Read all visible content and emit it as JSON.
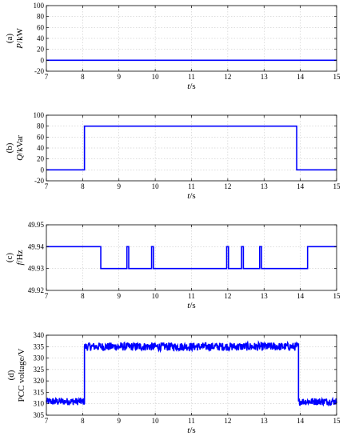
{
  "chart_data": [
    {
      "type": "line",
      "panel_label": "(a)",
      "ylabel_var": "P",
      "ylabel_unit": "/kW",
      "xlabel_var": "t",
      "xlabel_unit": "/s",
      "xlim": [
        7,
        15
      ],
      "ylim": [
        -20,
        100
      ],
      "xticks": [
        "7",
        "8",
        "9",
        "10",
        "11",
        "12",
        "13",
        "14",
        "15"
      ],
      "yticks": [
        "-20",
        "0",
        "20",
        "40",
        "60",
        "80",
        "100"
      ],
      "grid": true,
      "series": [
        {
          "x": [
            7,
            15
          ],
          "y": [
            0,
            0
          ]
        }
      ]
    },
    {
      "type": "line",
      "panel_label": "(b)",
      "ylabel_var": "Q",
      "ylabel_unit": "/kVar",
      "xlabel_var": "t",
      "xlabel_unit": "/s",
      "xlim": [
        7,
        15
      ],
      "ylim": [
        -20,
        100
      ],
      "xticks": [
        "7",
        "8",
        "9",
        "10",
        "11",
        "12",
        "13",
        "14",
        "15"
      ],
      "yticks": [
        "-20",
        "0",
        "20",
        "40",
        "60",
        "80",
        "100"
      ],
      "grid": true,
      "series": [
        {
          "x": [
            7,
            8.05,
            8.05,
            13.9,
            13.9,
            15
          ],
          "y": [
            0,
            0,
            80,
            80,
            0,
            0
          ]
        }
      ]
    },
    {
      "type": "line",
      "panel_label": "(c)",
      "ylabel_var": "f",
      "ylabel_unit": "/Hz",
      "xlabel_var": "t",
      "xlabel_unit": "/s",
      "xlim": [
        7,
        15
      ],
      "ylim": [
        49.92,
        49.95
      ],
      "xticks": [
        "7",
        "8",
        "9",
        "10",
        "11",
        "12",
        "13",
        "14",
        "15"
      ],
      "yticks": [
        "49.92",
        "49.93",
        "49.94",
        "49.95"
      ],
      "grid": true,
      "series": [
        {
          "x": [
            7,
            8.5,
            8.5,
            9.22,
            9.22,
            9.27,
            9.27,
            9.9,
            9.9,
            9.95,
            9.95,
            11.97,
            11.97,
            12.02,
            12.02,
            12.38,
            12.38,
            12.43,
            12.43,
            12.88,
            12.88,
            12.93,
            12.93,
            14.2,
            14.2,
            15
          ],
          "y": [
            49.94,
            49.94,
            49.93,
            49.93,
            49.94,
            49.94,
            49.93,
            49.93,
            49.94,
            49.94,
            49.93,
            49.93,
            49.94,
            49.94,
            49.93,
            49.93,
            49.94,
            49.94,
            49.93,
            49.93,
            49.94,
            49.94,
            49.93,
            49.93,
            49.94,
            49.94
          ]
        }
      ]
    },
    {
      "type": "line",
      "panel_label": "(d)",
      "ylabel_var": "",
      "ylabel_unit": "PCC voltage/V",
      "xlabel_var": "t",
      "xlabel_unit": "/s",
      "xlim": [
        7,
        15
      ],
      "ylim": [
        305,
        340
      ],
      "xticks": [
        "7",
        "8",
        "9",
        "10",
        "11",
        "12",
        "13",
        "14",
        "15"
      ],
      "yticks": [
        "305",
        "310",
        "315",
        "320",
        "325",
        "330",
        "335",
        "340"
      ],
      "grid": true,
      "series": [
        {
          "x": [
            7,
            8.05,
            8.05,
            13.95,
            13.95,
            15
          ],
          "y": [
            311,
            311,
            335,
            335,
            311,
            311
          ],
          "ripple": [
            1.6,
            1.6,
            1.8,
            1.8,
            1.6,
            1.6
          ]
        }
      ]
    }
  ],
  "colors": {
    "series": "#0000ff",
    "grid": "#bdbdbd",
    "axis": "#000000"
  }
}
